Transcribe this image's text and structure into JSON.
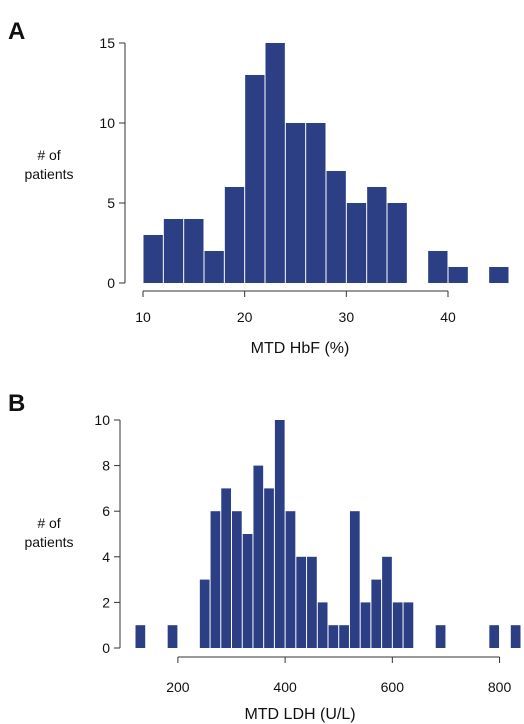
{
  "colors": {
    "bar": "#2c3e84",
    "axis": "#333333"
  },
  "chart_data": [
    {
      "panel_letter": "A",
      "type": "bar",
      "title": "",
      "xlabel": "MTD HbF (%)",
      "ylabel_lines": [
        "# of",
        "patients"
      ],
      "bin_width": 2,
      "bin_starts": [
        10,
        12,
        14,
        16,
        18,
        20,
        22,
        24,
        26,
        28,
        30,
        32,
        34,
        36,
        38,
        40,
        42,
        44
      ],
      "values": [
        3,
        4,
        4,
        2,
        6,
        13,
        15,
        10,
        10,
        7,
        5,
        6,
        5,
        0,
        2,
        1,
        0,
        1
      ],
      "xlim": [
        10,
        46
      ],
      "ylim": [
        0,
        15
      ],
      "xticks": [
        10,
        20,
        30,
        40
      ],
      "yticks": [
        0,
        5,
        10,
        15
      ],
      "grid": false
    },
    {
      "panel_letter": "B",
      "type": "bar",
      "title": "",
      "xlabel": "MTD LDH (U/L)",
      "ylabel_lines": [
        "# of",
        "patients"
      ],
      "bin_width": 20,
      "bin_starts": [
        120,
        140,
        160,
        180,
        200,
        220,
        240,
        260,
        280,
        300,
        320,
        340,
        360,
        380,
        400,
        420,
        440,
        460,
        480,
        500,
        520,
        540,
        560,
        580,
        600,
        620,
        640,
        660,
        680,
        700,
        720,
        740,
        760,
        780,
        800,
        820
      ],
      "values": [
        1,
        0,
        0,
        1,
        0,
        0,
        3,
        6,
        7,
        6,
        5,
        8,
        7,
        10,
        6,
        4,
        4,
        2,
        1,
        1,
        6,
        2,
        3,
        4,
        2,
        2,
        0,
        0,
        1,
        0,
        0,
        0,
        0,
        1,
        0,
        1
      ],
      "xlim": [
        120,
        840
      ],
      "ylim": [
        0,
        10
      ],
      "xticks": [
        200,
        400,
        600,
        800
      ],
      "yticks": [
        0,
        2,
        4,
        6,
        8,
        10
      ],
      "grid": false
    }
  ]
}
